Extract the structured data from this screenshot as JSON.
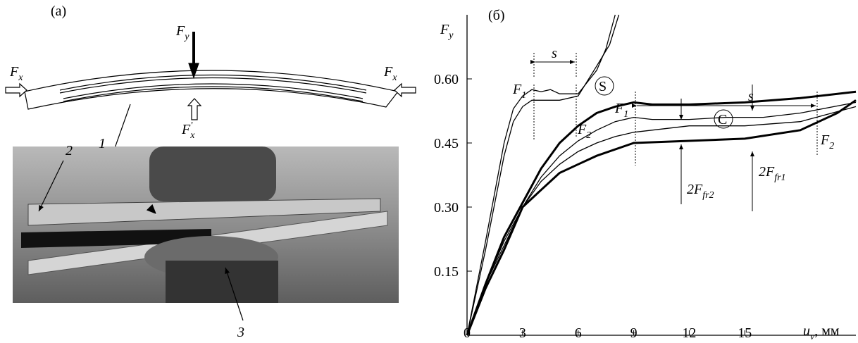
{
  "panel_a": {
    "label": "(а)",
    "force_y": {
      "main": "F",
      "sub": "y"
    },
    "force_x_left": {
      "main": "F",
      "sub": "x"
    },
    "force_x_right": {
      "main": "F",
      "sub": "x"
    },
    "force_x_prime": {
      "main": "F",
      "sub": "x",
      "sup": "'"
    },
    "part_1": "1",
    "part_2": "2",
    "part_3": "3"
  },
  "chart_data": {
    "type": "line",
    "title": "(б)",
    "y_label": {
      "main": "F",
      "sub": "y"
    },
    "x_label": {
      "main": "u",
      "sub": "v",
      "unit": ", мм"
    },
    "xlim": [
      0,
      21
    ],
    "ylim": [
      0,
      0.75
    ],
    "xticks": [
      0,
      3,
      6,
      9,
      12,
      15
    ],
    "yticks": [
      0.15,
      {
        "value": 0.3,
        "label": "0.30"
      },
      0.45,
      {
        "value": 0.6,
        "label": "0.60"
      }
    ],
    "grid": false,
    "series": [
      {
        "color": "#000",
        "linewidth": 1.3,
        "x": [
          0,
          1,
          2,
          2.5,
          3,
          3.5,
          4,
          4.5,
          5,
          6,
          7,
          7.5,
          8
        ],
        "values": [
          0,
          0.22,
          0.45,
          0.53,
          0.56,
          0.575,
          0.57,
          0.575,
          0.565,
          0.565,
          0.62,
          0.67,
          0.75
        ]
      },
      {
        "color": "#000",
        "linewidth": 1.3,
        "x": [
          0,
          1,
          2,
          2.5,
          3,
          3.5,
          5,
          6,
          7,
          7.7,
          8.2
        ],
        "values": [
          0,
          0.2,
          0.42,
          0.5,
          0.535,
          0.55,
          0.55,
          0.56,
          0.63,
          0.68,
          0.75
        ]
      },
      {
        "color": "#000",
        "linewidth": 3,
        "x": [
          0,
          1,
          2,
          3,
          4,
          5,
          6,
          7,
          8,
          9,
          10,
          12,
          15,
          18,
          21
        ],
        "values": [
          0,
          0.12,
          0.23,
          0.31,
          0.39,
          0.45,
          0.49,
          0.52,
          0.535,
          0.545,
          0.54,
          0.54,
          0.545,
          0.555,
          0.57
        ]
      },
      {
        "color": "#000",
        "linewidth": 1.3,
        "x": [
          0,
          1,
          2,
          3,
          4,
          5,
          6,
          7,
          8,
          9,
          10,
          12,
          14,
          16,
          18,
          21
        ],
        "values": [
          0,
          0.12,
          0.22,
          0.3,
          0.37,
          0.42,
          0.455,
          0.48,
          0.5,
          0.51,
          0.505,
          0.505,
          0.51,
          0.51,
          0.52,
          0.545
        ]
      },
      {
        "color": "#000",
        "linewidth": 1.3,
        "x": [
          0,
          1,
          2,
          3,
          4,
          5,
          6,
          7,
          8,
          9,
          12,
          15,
          18,
          21
        ],
        "values": [
          0,
          0.12,
          0.21,
          0.3,
          0.36,
          0.4,
          0.43,
          0.45,
          0.465,
          0.475,
          0.49,
          0.49,
          0.5,
          0.535
        ]
      },
      {
        "color": "#000",
        "linewidth": 3,
        "x": [
          0,
          1,
          2,
          3,
          4,
          5,
          6,
          7,
          9,
          12,
          15,
          18,
          20,
          21
        ],
        "values": [
          0,
          0.11,
          0.2,
          0.3,
          0.34,
          0.38,
          0.4,
          0.42,
          0.45,
          0.455,
          0.46,
          0.48,
          0.52,
          0.55
        ]
      }
    ],
    "annotations": [
      {
        "main": "F",
        "sub": "1"
      },
      {
        "main": "F",
        "sub": "2"
      },
      {
        "main": "s"
      },
      {
        "main": "S"
      },
      {
        "main": "F",
        "sub": "1"
      },
      {
        "main": "s"
      },
      {
        "main": "C"
      },
      {
        "main": "2F",
        "sub": "fr2"
      },
      {
        "main": "2F",
        "sub": "fr1"
      },
      {
        "main": "F",
        "sub": "2"
      }
    ]
  }
}
